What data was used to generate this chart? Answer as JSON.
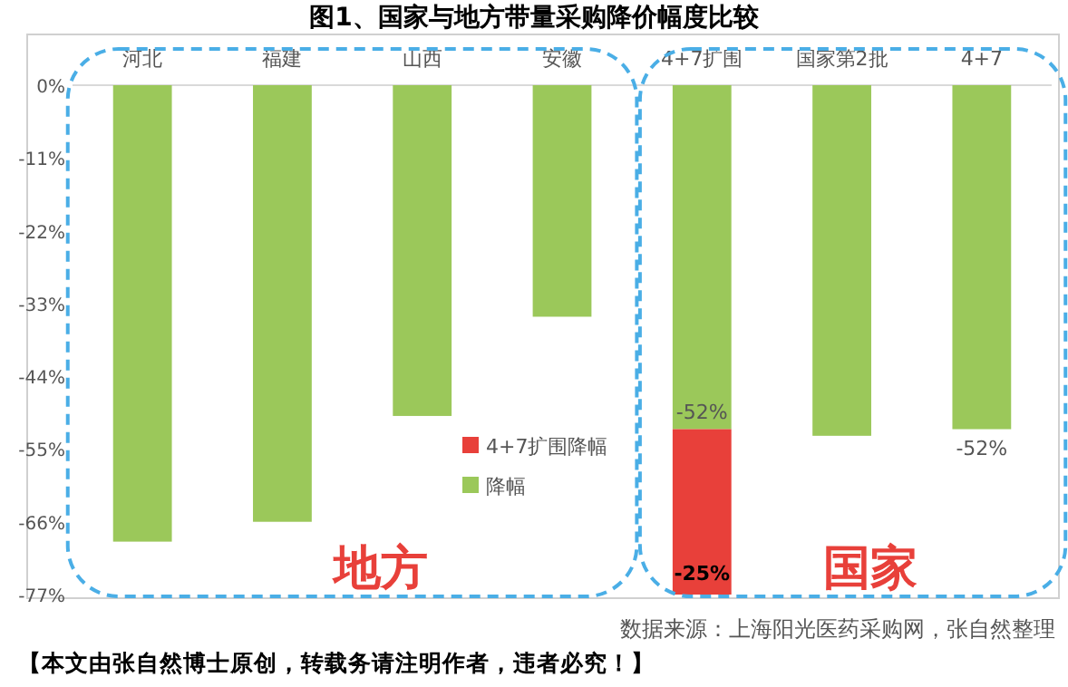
{
  "chart_data": {
    "type": "bar",
    "title": "图1、国家与地方带量采购降价幅度比较",
    "categories": [
      "河北",
      "福建",
      "山西",
      "安徽",
      "4+7扩围",
      "国家第2批",
      "4+7"
    ],
    "stacked": true,
    "legend": "bottom",
    "grid": false,
    "series": [
      {
        "name": "降幅",
        "color": "#9bc85a",
        "values": [
          -69,
          -66,
          -50,
          -35,
          -52,
          -53,
          -52
        ],
        "value_labels": [
          null,
          null,
          null,
          null,
          "-52%",
          null,
          "-52%"
        ]
      },
      {
        "name": "4+7扩围降幅",
        "color": "#e8403a",
        "values": [
          null,
          null,
          null,
          null,
          -25,
          null,
          null
        ],
        "value_labels": [
          null,
          null,
          null,
          null,
          "-25%",
          null,
          null
        ]
      }
    ],
    "ylim": [
      -77,
      0
    ],
    "yticks": [
      {
        "value": 0,
        "label": "0%"
      },
      {
        "value": -11,
        "label": "-11%"
      },
      {
        "value": -22,
        "label": "-22%"
      },
      {
        "value": -33,
        "label": "-33%"
      },
      {
        "value": -44,
        "label": "-44%"
      },
      {
        "value": -55,
        "label": "-55%"
      },
      {
        "value": -66,
        "label": "-66%"
      },
      {
        "value": -77,
        "label": "-77%"
      }
    ],
    "annotations": [
      "地方",
      "国家",
      "数据来源：上海阳光医药采购网，张自然整理",
      "【本文由张自然博士原创，转载务请注明作者，违者必究！】"
    ]
  }
}
